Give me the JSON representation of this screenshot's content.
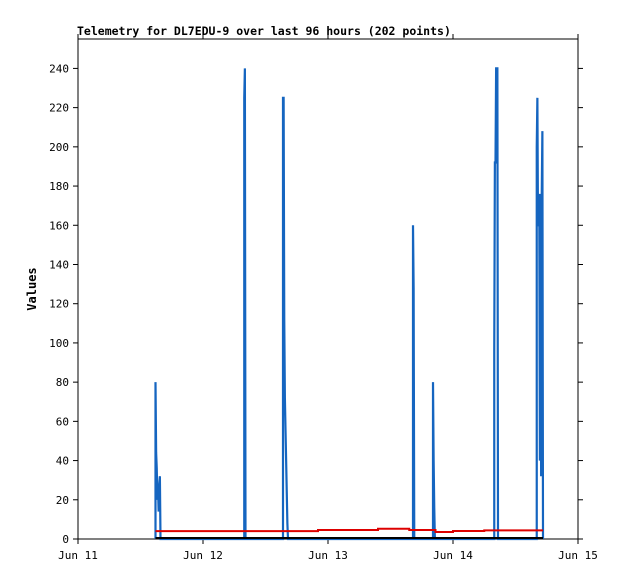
{
  "chart_data": {
    "type": "line",
    "title": "Telemetry for DL7EDU-9 over last 96 hours (202 points)",
    "xlabel": "",
    "ylabel": "Values",
    "ylim": [
      0,
      255
    ],
    "yticks": [
      0,
      20,
      40,
      60,
      80,
      100,
      120,
      140,
      160,
      180,
      200,
      220,
      240
    ],
    "x_tick_labels": [
      "Jun 11",
      "Jun 12",
      "Jun 13",
      "Jun 14",
      "Jun 15"
    ],
    "xlim_days": [
      0,
      4
    ],
    "grid": false,
    "legend": "none",
    "series": [
      {
        "color": "#1565c0",
        "points": [
          [
            0.62,
            0
          ],
          [
            0.62,
            80
          ],
          [
            0.625,
            44
          ],
          [
            0.63,
            36
          ],
          [
            0.635,
            20
          ],
          [
            0.64,
            27
          ],
          [
            0.645,
            14
          ],
          [
            0.65,
            28
          ],
          [
            0.655,
            32
          ],
          [
            0.66,
            0
          ],
          [
            1.33,
            0
          ],
          [
            1.33,
            225
          ],
          [
            1.335,
            240
          ],
          [
            1.34,
            0
          ],
          [
            1.64,
            0
          ],
          [
            1.64,
            225
          ],
          [
            1.645,
            225
          ],
          [
            1.65,
            112
          ],
          [
            1.655,
            72
          ],
          [
            1.66,
            56
          ],
          [
            1.665,
            40
          ],
          [
            1.67,
            24
          ],
          [
            1.675,
            8
          ],
          [
            1.68,
            0
          ],
          [
            2.68,
            0
          ],
          [
            2.68,
            160
          ],
          [
            2.685,
            128
          ],
          [
            2.69,
            0
          ],
          [
            2.84,
            0
          ],
          [
            2.84,
            80
          ],
          [
            2.845,
            40
          ],
          [
            2.85,
            16
          ],
          [
            2.855,
            0
          ],
          [
            3.33,
            0
          ],
          [
            3.33,
            96
          ],
          [
            3.335,
            192
          ],
          [
            3.34,
            192
          ],
          [
            3.345,
            240
          ],
          [
            3.35,
            240
          ],
          [
            3.355,
            240
          ],
          [
            3.36,
            0
          ],
          [
            3.67,
            0
          ],
          [
            3.67,
            200
          ],
          [
            3.675,
            225
          ],
          [
            3.68,
            160
          ],
          [
            3.685,
            160
          ],
          [
            3.69,
            176
          ],
          [
            3.695,
            40
          ],
          [
            3.7,
            176
          ],
          [
            3.705,
            32
          ],
          [
            3.71,
            176
          ],
          [
            3.715,
            208
          ],
          [
            3.72,
            0
          ]
        ]
      },
      {
        "color": "#dd0000",
        "points": [
          [
            0.62,
            4
          ],
          [
            1.92,
            4
          ],
          [
            1.92,
            4.6
          ],
          [
            2.4,
            4.6
          ],
          [
            2.4,
            5.2
          ],
          [
            2.65,
            5.2
          ],
          [
            2.65,
            4.6
          ],
          [
            2.86,
            4.6
          ],
          [
            2.86,
            3.6
          ],
          [
            3.0,
            3.6
          ],
          [
            3.0,
            4.1
          ],
          [
            3.25,
            4.1
          ],
          [
            3.25,
            4.4
          ],
          [
            3.72,
            4.4
          ]
        ]
      },
      {
        "color": "#000000",
        "points": [
          [
            0.62,
            0.5
          ],
          [
            3.72,
            0.5
          ]
        ]
      }
    ]
  }
}
